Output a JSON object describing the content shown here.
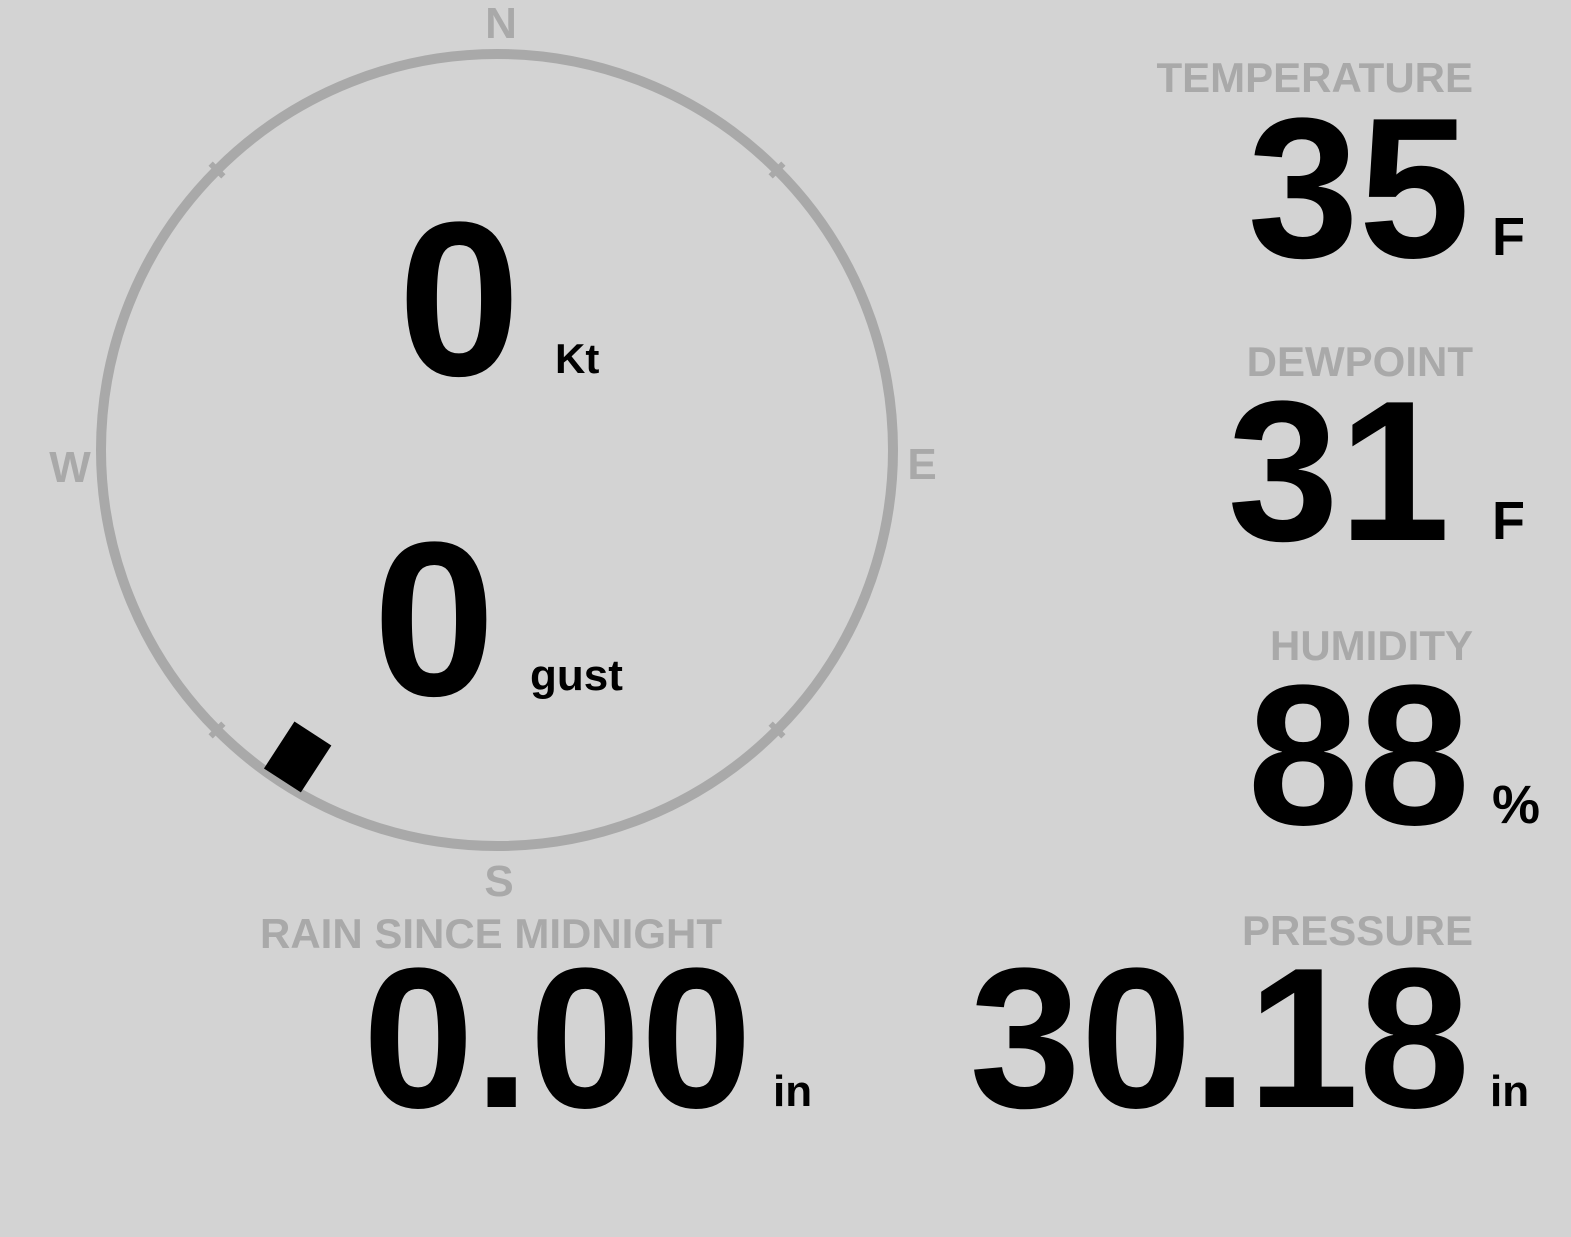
{
  "wind": {
    "speed": "0",
    "speed_unit": "Kt",
    "gust": "0",
    "gust_unit": "gust",
    "direction_deg": 213,
    "compass": {
      "n": "N",
      "s": "S",
      "e": "E",
      "w": "W"
    }
  },
  "temperature": {
    "label": "TEMPERATURE",
    "value": "35",
    "unit": "F"
  },
  "dewpoint": {
    "label": "DEWPOINT",
    "value": "31",
    "unit": "F"
  },
  "humidity": {
    "label": "HUMIDITY",
    "value": "88",
    "unit": "%"
  },
  "rain": {
    "label": "RAIN SINCE MIDNIGHT",
    "value": "0.00",
    "unit": "in"
  },
  "pressure": {
    "label": "PRESSURE",
    "value": "30.18",
    "unit": "in"
  },
  "colors": {
    "background": "#d3d3d3",
    "label": "#a9a9a9",
    "value": "#000000"
  }
}
